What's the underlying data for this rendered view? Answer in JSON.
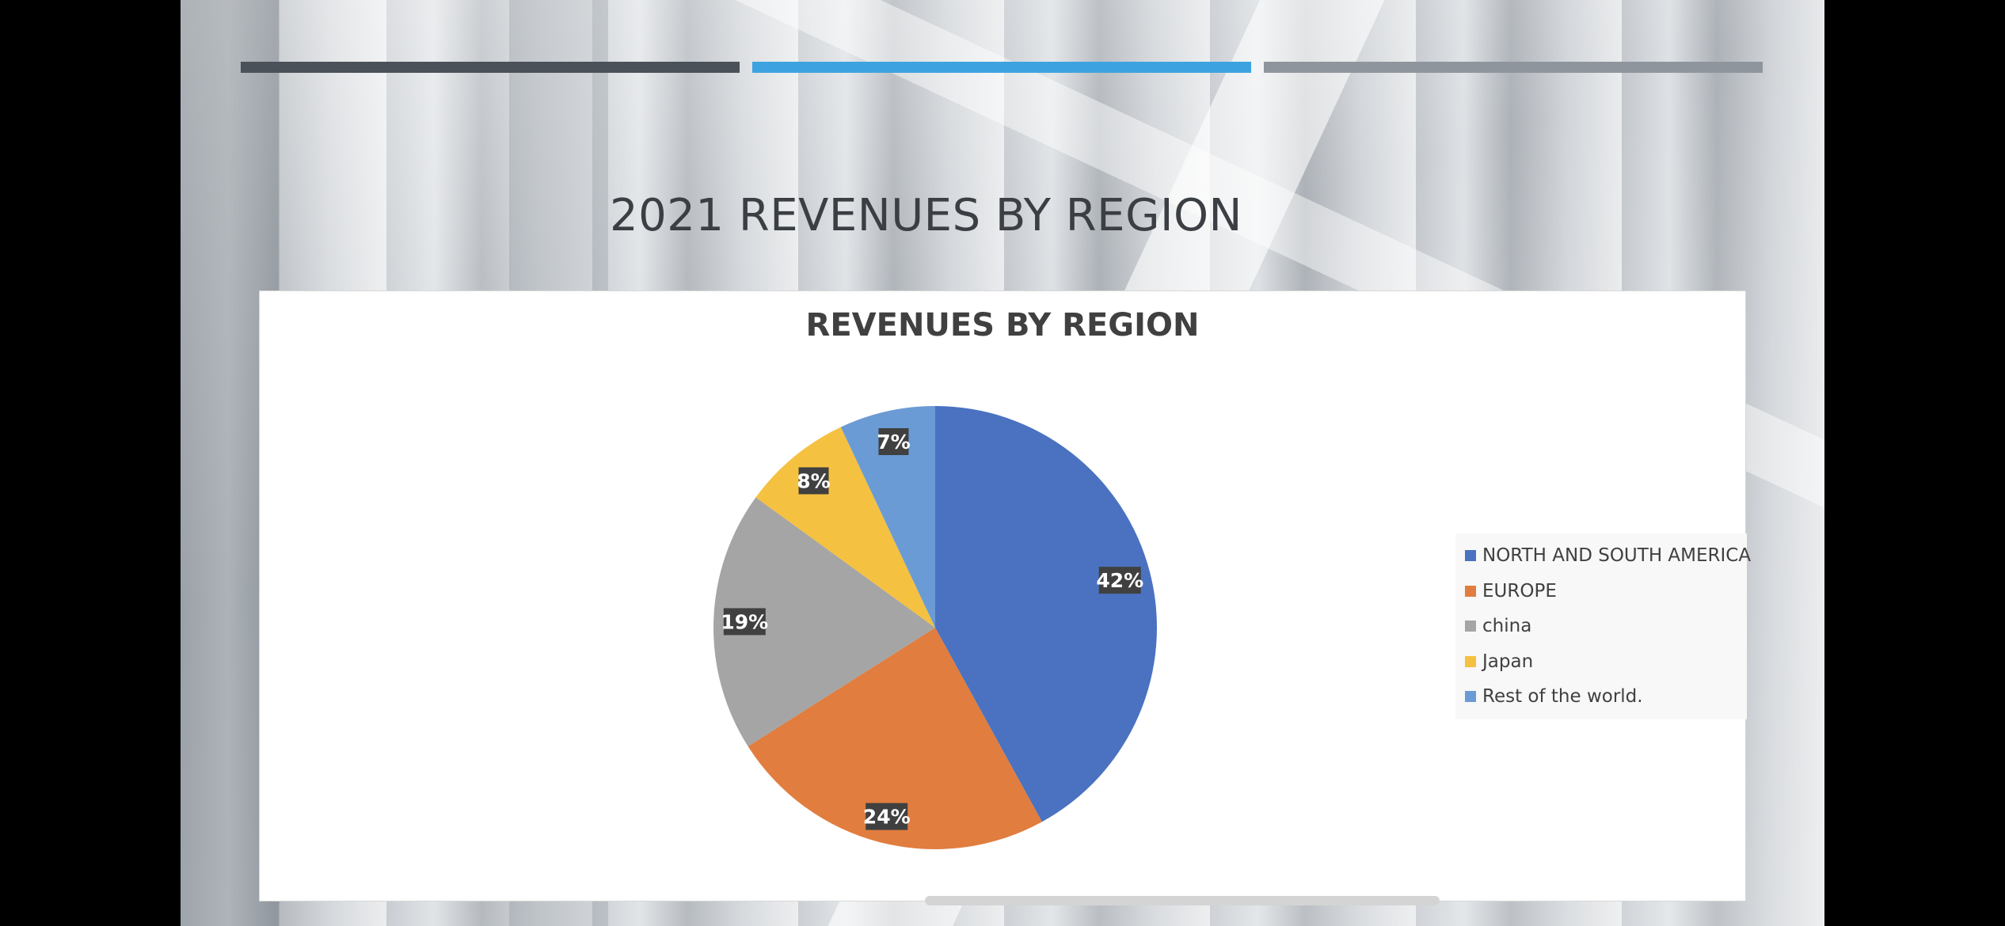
{
  "slide": {
    "title": "2021 REVENUES BY REGION",
    "accent_bars": [
      "#4a5159",
      "#3da3e0",
      "#8f959c"
    ]
  },
  "chart_data": {
    "type": "pie",
    "title": "REVENUES BY REGION",
    "categories": [
      "NORTH AND SOUTH AMERICA",
      "EUROPE",
      "china",
      "Japan",
      "Rest of the world."
    ],
    "values": [
      42,
      24,
      19,
      8,
      7
    ],
    "labels": [
      "42%",
      "24%",
      "19%",
      "8%",
      "7%"
    ],
    "colors": [
      "#4a72c0",
      "#e07d3f",
      "#a5a5a5",
      "#f5c140",
      "#6b9bd4"
    ],
    "start_angle": "12 o'clock",
    "direction": "clockwise",
    "legend_position": "right"
  }
}
